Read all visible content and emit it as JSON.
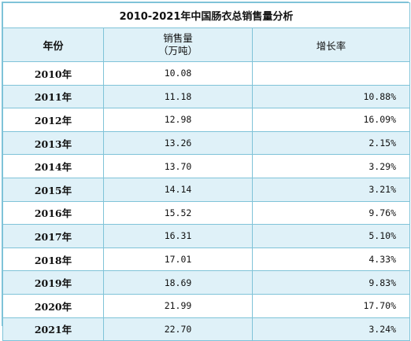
{
  "chart_data": {
    "type": "table",
    "title": "2010-2021年中国肠衣总销售量分析",
    "columns": [
      "年份",
      "销售量",
      "增长率"
    ],
    "sales_unit": "（万吨）",
    "rows": [
      {
        "year": "2010年",
        "sales": "10.08",
        "growth": ""
      },
      {
        "year": "2011年",
        "sales": "11.18",
        "growth": "10.88%"
      },
      {
        "year": "2012年",
        "sales": "12.98",
        "growth": "16.09%"
      },
      {
        "year": "2013年",
        "sales": "13.26",
        "growth": "2.15%"
      },
      {
        "year": "2014年",
        "sales": "13.70",
        "growth": "3.29%"
      },
      {
        "year": "2015年",
        "sales": "14.14",
        "growth": "3.21%"
      },
      {
        "year": "2016年",
        "sales": "15.52",
        "growth": "9.76%"
      },
      {
        "year": "2017年",
        "sales": "16.31",
        "growth": "5.10%"
      },
      {
        "year": "2018年",
        "sales": "17.01",
        "growth": "4.33%"
      },
      {
        "year": "2019年",
        "sales": "18.69",
        "growth": "9.83%"
      },
      {
        "year": "2020年",
        "sales": "21.99",
        "growth": "17.70%"
      },
      {
        "year": "2021年",
        "sales": "22.70",
        "growth": "3.24%"
      }
    ]
  },
  "colors": {
    "border": "#7fc3d8",
    "header_bg": "#dff1f8",
    "stripe_bg": "#dff1f8"
  }
}
